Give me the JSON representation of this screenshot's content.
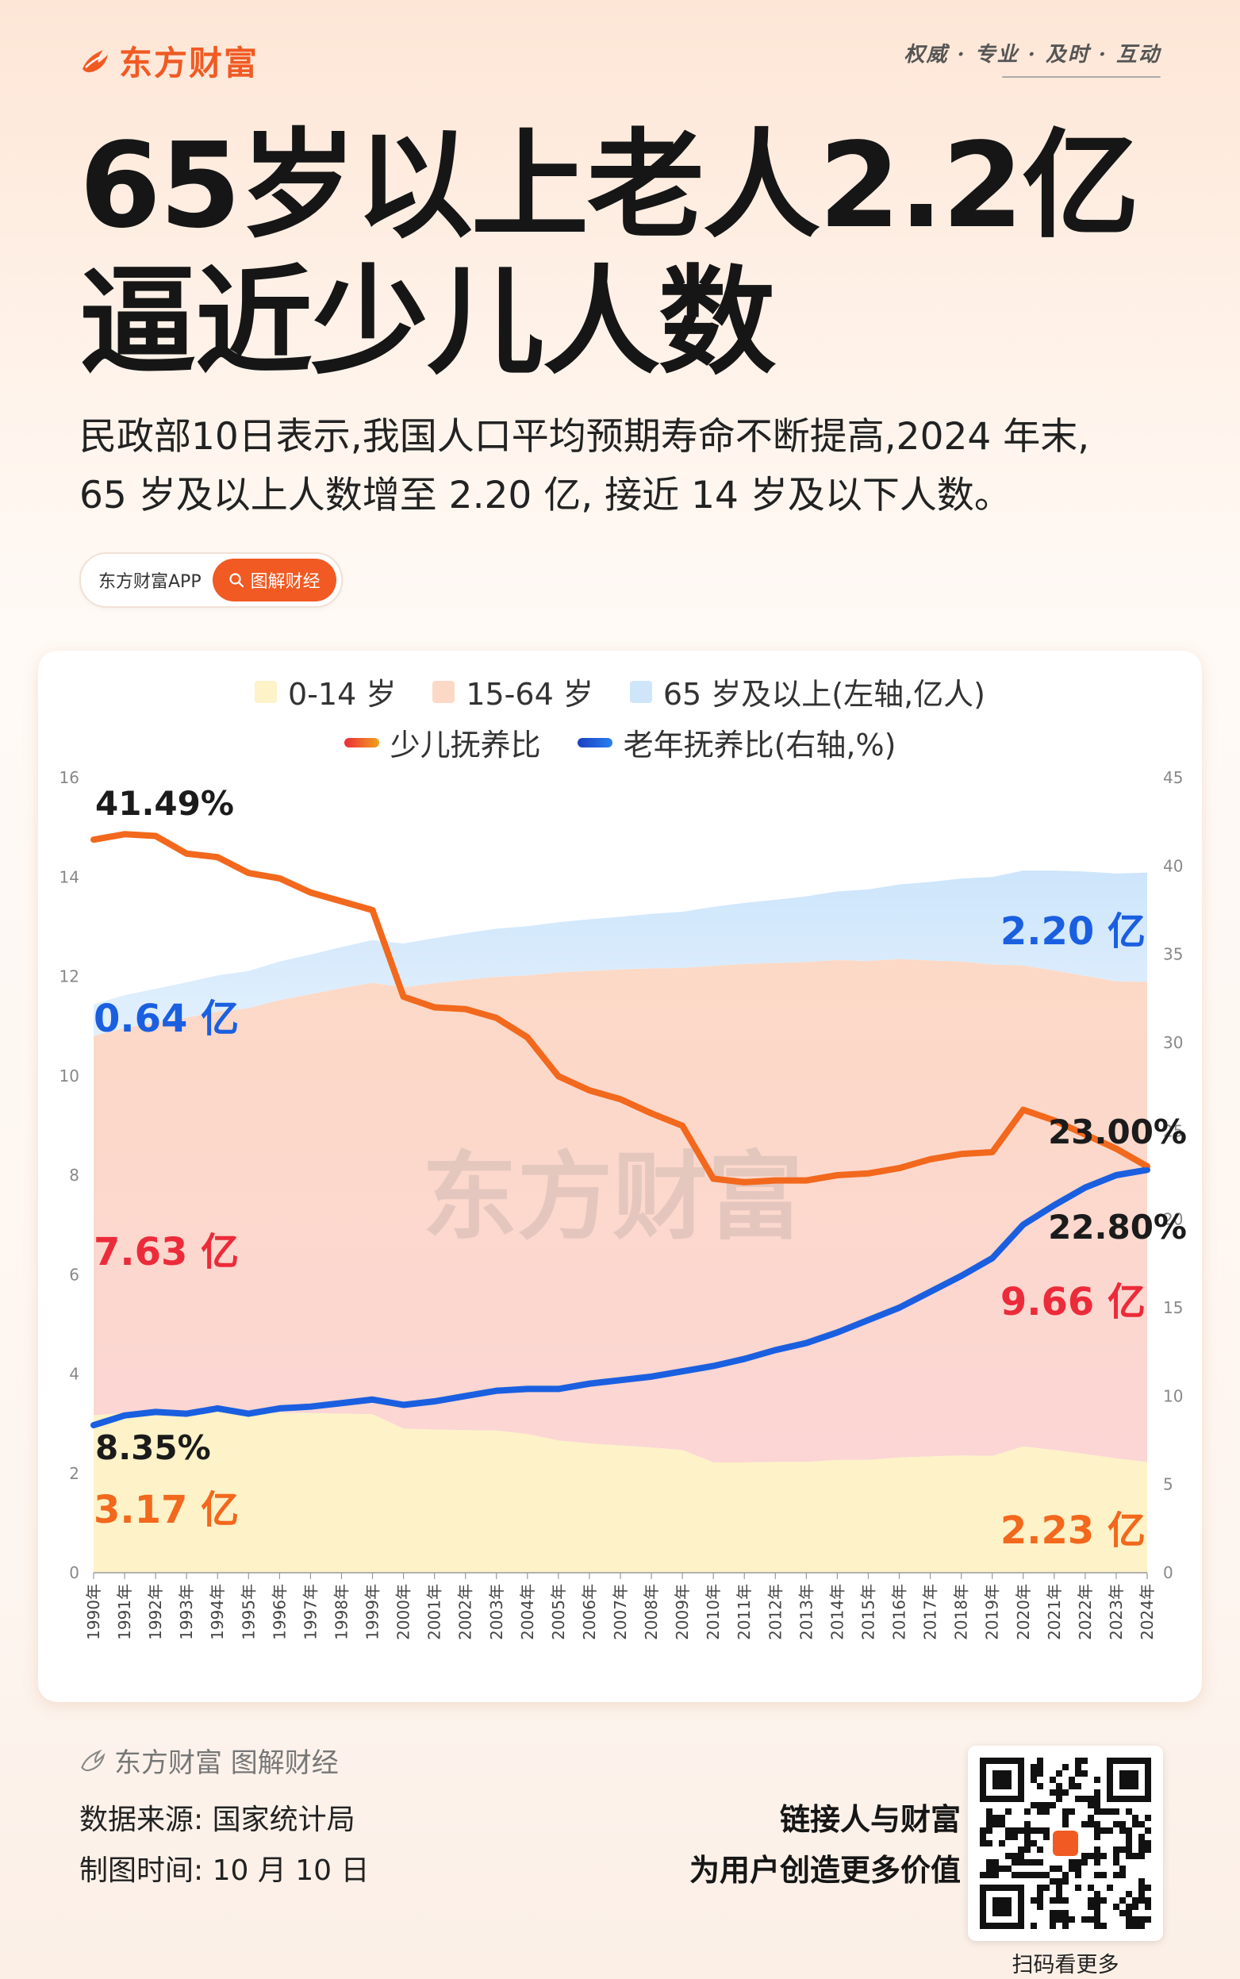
{
  "header": {
    "brand": "东方财富",
    "slogan": "权威 · 专业 · 及时 · 互动",
    "title_line1": "65岁以上老人2.2亿",
    "title_line2": "逼近少儿人数",
    "lead_line1": "民政部10日表示,我国人口平均预期寿命不断提高,2024 年末,",
    "lead_line2": "65 岁及以上人数增至 2.20 亿, 接近 14 岁及以下人数。",
    "app_label": "东方财富APP",
    "channel_label": "图解财经"
  },
  "colors": {
    "brand": "#f15a22",
    "area_0_14": "#fdf2c8",
    "area_15_64": "#fcd9c6",
    "area_65": "#cfe6fa",
    "child_ratio_line": "#f2681d",
    "elder_ratio_line": "#1a5fe0",
    "label_blue": "#1a5fe0",
    "label_red": "#ec2b3a"
  },
  "chart_data": {
    "type": "area",
    "watermark": "东方财富",
    "legend": [
      "0-14 岁",
      "15-64 岁",
      "65 岁及以上(左轴,亿人)",
      "少儿抚养比",
      "老年抚养比(右轴,%)"
    ],
    "categories": [
      "1990年",
      "1991年",
      "1992年",
      "1993年",
      "1994年",
      "1995年",
      "1996年",
      "1997年",
      "1998年",
      "1999年",
      "2000年",
      "2001年",
      "2002年",
      "2003年",
      "2004年",
      "2005年",
      "2006年",
      "2007年",
      "2008年",
      "2009年",
      "2010年",
      "2011年",
      "2012年",
      "2013年",
      "2014年",
      "2015年",
      "2016年",
      "2017年",
      "2018年",
      "2019年",
      "2020年",
      "2021年",
      "2022年",
      "2023年",
      "2024年"
    ],
    "y_left": {
      "min": 0,
      "max": 16,
      "ticks": [
        "0",
        "2",
        "4",
        "6",
        "8",
        "10",
        "12",
        "14",
        "16"
      ]
    },
    "y_right": {
      "min": 0,
      "max": 45,
      "ticks": [
        "0",
        "5",
        "10",
        "15",
        "20",
        "25",
        "30",
        "35",
        "40",
        "45"
      ]
    },
    "series": [
      {
        "name": "0-14 岁",
        "axis": "left",
        "kind": "area",
        "values": [
          3.17,
          3.21,
          3.22,
          3.21,
          3.24,
          3.2,
          3.22,
          3.21,
          3.2,
          3.19,
          2.9,
          2.88,
          2.87,
          2.86,
          2.79,
          2.66,
          2.6,
          2.56,
          2.52,
          2.47,
          2.22,
          2.22,
          2.23,
          2.23,
          2.27,
          2.27,
          2.32,
          2.34,
          2.36,
          2.35,
          2.54,
          2.47,
          2.39,
          2.3,
          2.23
        ]
      },
      {
        "name": "15-64 岁",
        "axis": "left",
        "kind": "area",
        "values": [
          7.63,
          7.75,
          7.85,
          7.96,
          8.05,
          8.16,
          8.3,
          8.43,
          8.56,
          8.68,
          8.88,
          8.98,
          9.06,
          9.13,
          9.23,
          9.42,
          9.51,
          9.58,
          9.64,
          9.7,
          9.99,
          10.03,
          10.04,
          10.06,
          10.06,
          10.04,
          10.03,
          9.98,
          9.94,
          9.89,
          9.68,
          9.65,
          9.62,
          9.6,
          9.66
        ]
      },
      {
        "name": "65 岁及以上",
        "axis": "left",
        "kind": "area",
        "values": [
          0.64,
          0.66,
          0.68,
          0.71,
          0.73,
          0.75,
          0.78,
          0.8,
          0.83,
          0.86,
          0.88,
          0.91,
          0.94,
          0.97,
          0.99,
          1.01,
          1.04,
          1.06,
          1.1,
          1.13,
          1.19,
          1.23,
          1.27,
          1.32,
          1.38,
          1.44,
          1.5,
          1.58,
          1.67,
          1.76,
          1.91,
          2.01,
          2.1,
          2.17,
          2.2
        ]
      },
      {
        "name": "少儿抚养比",
        "axis": "right",
        "kind": "line",
        "values": [
          41.49,
          41.8,
          41.7,
          40.7,
          40.5,
          39.6,
          39.3,
          38.5,
          38.0,
          37.5,
          32.6,
          32.0,
          31.9,
          31.4,
          30.3,
          28.1,
          27.3,
          26.8,
          26.0,
          25.3,
          22.3,
          22.1,
          22.2,
          22.2,
          22.5,
          22.6,
          22.9,
          23.4,
          23.7,
          23.8,
          26.2,
          25.6,
          24.8,
          24.0,
          23.0
        ]
      },
      {
        "name": "老年抚养比(右轴,%)",
        "axis": "right",
        "kind": "line",
        "values": [
          8.35,
          8.9,
          9.1,
          9.0,
          9.3,
          9.0,
          9.3,
          9.4,
          9.6,
          9.8,
          9.5,
          9.7,
          10.0,
          10.3,
          10.4,
          10.4,
          10.7,
          10.9,
          11.1,
          11.4,
          11.7,
          12.1,
          12.6,
          13.0,
          13.6,
          14.3,
          15.0,
          15.9,
          16.8,
          17.8,
          19.7,
          20.8,
          21.8,
          22.5,
          22.8
        ]
      }
    ],
    "annotations": {
      "child_ratio_start": "41.49%",
      "elder_65_start": "0.64 亿",
      "age_15_64_start": "7.63 亿",
      "elder_ratio_start": "8.35%",
      "age_0_14_start": "3.17 亿",
      "elder_65_end": "2.20 亿",
      "child_ratio_end": "23.00%",
      "elder_ratio_end": "22.80%",
      "age_15_64_end": "9.66 亿",
      "age_0_14_end": "2.23 亿"
    }
  },
  "footer": {
    "brand_line": "东方财富 图解财经",
    "source": "数据来源: 国家统计局",
    "date": "制图时间: 10 月 10 日",
    "tagline1": "链接人与财富",
    "tagline2": "为用户创造更多价值",
    "qr_caption": "扫码看更多"
  }
}
